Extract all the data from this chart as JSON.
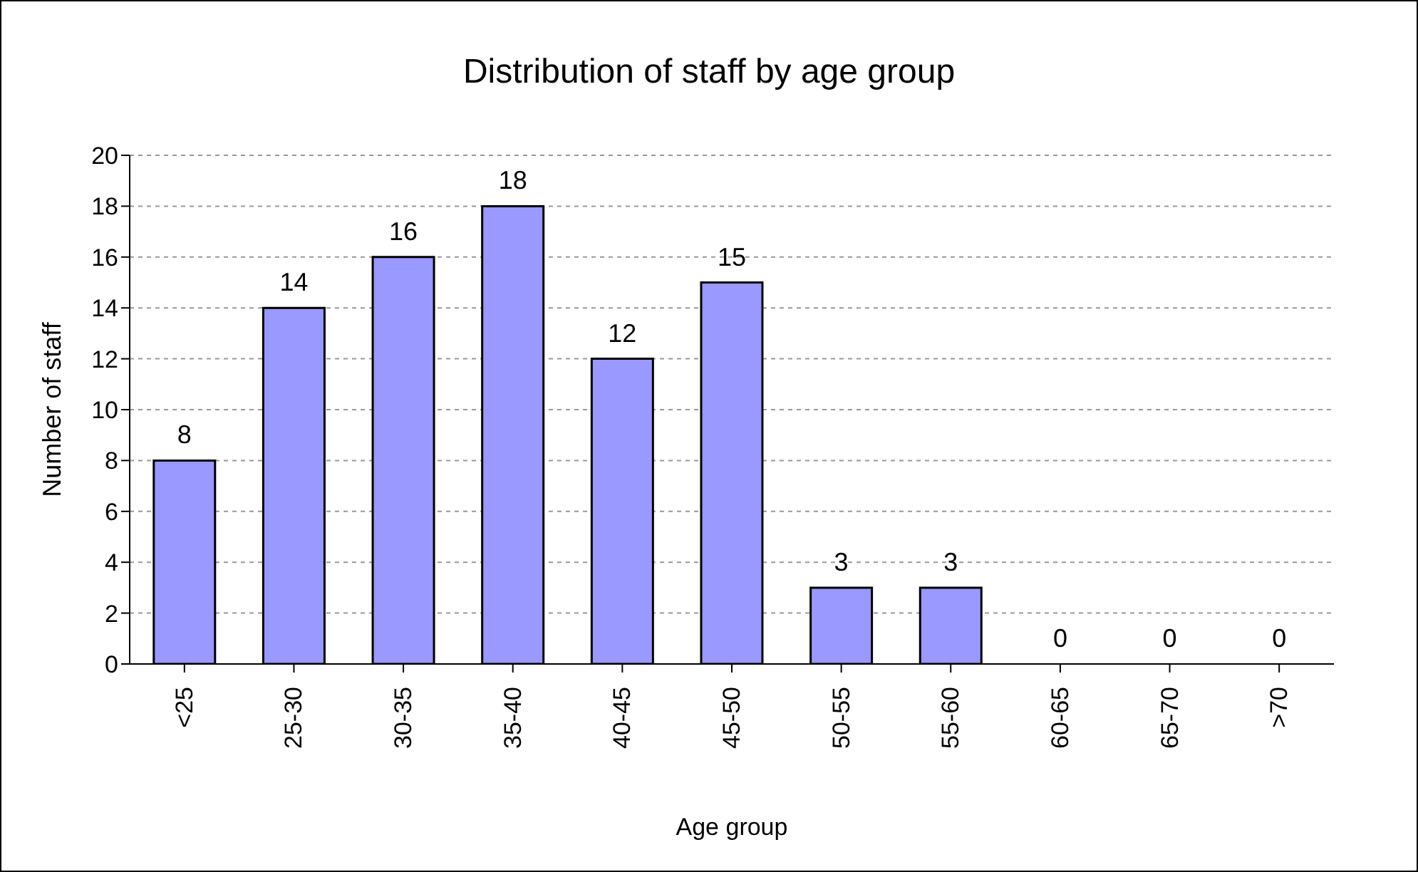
{
  "chart_data": {
    "type": "bar",
    "title": "Distribution of staff by age group",
    "xlabel": "Age group",
    "ylabel": "Number  of staff",
    "categories": [
      "<25",
      "25-30",
      "30-35",
      "35-40",
      "40-45",
      "45-50",
      "50-55",
      "55-60",
      "60-65",
      "65-70",
      ">70"
    ],
    "values": [
      8,
      14,
      16,
      18,
      12,
      15,
      3,
      3,
      0,
      0,
      0
    ],
    "color": "#9999ff",
    "ylim": [
      0,
      20
    ],
    "yticks": [
      0,
      2,
      4,
      6,
      8,
      10,
      12,
      14,
      16,
      18,
      20
    ],
    "grid": "y",
    "data_labels": true,
    "legend": false
  }
}
